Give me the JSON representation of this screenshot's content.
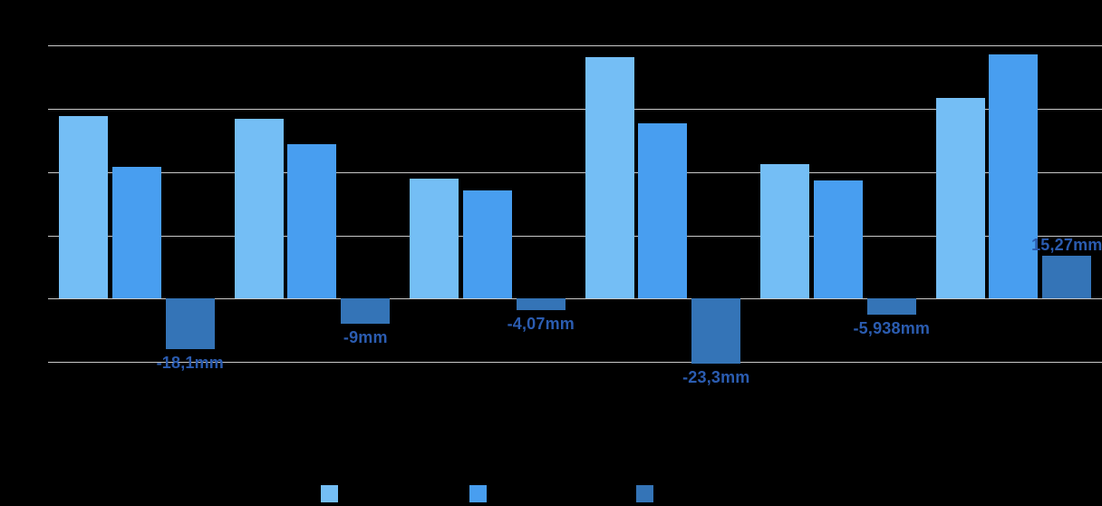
{
  "chart_data": {
    "type": "bar",
    "layout": "grouped",
    "unit": "mm",
    "group_count": 6,
    "title": "",
    "xlabel": "",
    "ylabel": "",
    "axis_tick_labels_visible": false,
    "category_labels_visible": false,
    "ylim": [
      -22.5,
      90
    ],
    "y_gridline_step": 22.5,
    "grid": "horizontal",
    "gridline_color": "#C8C8C8",
    "background_color": "#000000",
    "data_label_color": "#2B5CB0",
    "series": [
      {
        "name": "series-1-light-blue",
        "color": "#74BEF5",
        "values": [
          65.0,
          63.9,
          42.5,
          85.7,
          47.9,
          71.2
        ],
        "values_estimated_from_gridlines": true,
        "labels": [
          "",
          "",
          "",
          "",
          "",
          ""
        ]
      },
      {
        "name": "series-2-medium-blue",
        "color": "#489EF0",
        "values": [
          46.9,
          54.8,
          38.4,
          62.4,
          41.9,
          86.7
        ],
        "values_estimated_from_gridlines": true,
        "labels": [
          "",
          "",
          "",
          "",
          "",
          ""
        ]
      },
      {
        "name": "series-3-dark-blue-difference",
        "color": "#3474B7",
        "values": [
          -18.1,
          -9,
          -4.07,
          -23.3,
          -5.938,
          15.27
        ],
        "labels": [
          "-18,1mm",
          "-9mm",
          "-4,07mm",
          "-23,3mm",
          "-5,938mm",
          "15,27mm"
        ]
      }
    ],
    "legend": {
      "position": "bottom",
      "swatch_colors": [
        "#74BEF5",
        "#489EF0",
        "#3474B7"
      ],
      "labels_visible": false
    }
  }
}
